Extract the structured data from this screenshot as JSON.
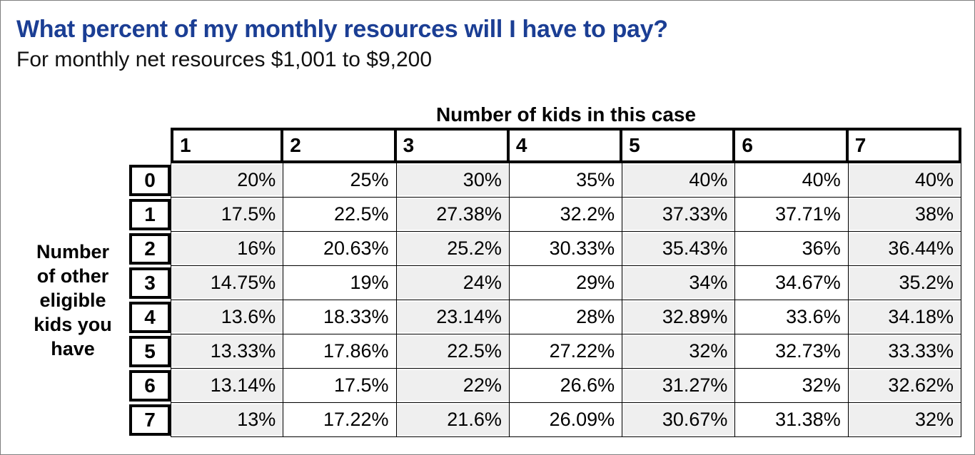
{
  "title": "What percent of my monthly resources will I have to pay?",
  "subtitle": "For monthly net resources $1,001 to $9,200",
  "table": {
    "col_axis_label": "Number of kids in this case",
    "row_axis_label": "Number of other eligible kids you have",
    "col_headers": [
      "1",
      "2",
      "3",
      "4",
      "5",
      "6",
      "7"
    ],
    "row_headers": [
      "0",
      "1",
      "2",
      "3",
      "4",
      "5",
      "6",
      "7"
    ],
    "rows": [
      [
        "20%",
        "25%",
        "30%",
        "35%",
        "40%",
        "40%",
        "40%"
      ],
      [
        "17.5%",
        "22.5%",
        "27.38%",
        "32.2%",
        "37.33%",
        "37.71%",
        "38%"
      ],
      [
        "16%",
        "20.63%",
        "25.2%",
        "30.33%",
        "35.43%",
        "36%",
        "36.44%"
      ],
      [
        "14.75%",
        "19%",
        "24%",
        "29%",
        "34%",
        "34.67%",
        "35.2%"
      ],
      [
        "13.6%",
        "18.33%",
        "23.14%",
        "28%",
        "32.89%",
        "33.6%",
        "34.18%"
      ],
      [
        "13.33%",
        "17.86%",
        "22.5%",
        "27.22%",
        "32%",
        "32.73%",
        "33.33%"
      ],
      [
        "13.14%",
        "17.5%",
        "22%",
        "26.6%",
        "31.27%",
        "32%",
        "32.62%"
      ],
      [
        "13%",
        "17.22%",
        "21.6%",
        "26.09%",
        "30.67%",
        "31.38%",
        "32%"
      ]
    ]
  },
  "colors": {
    "title_blue": "#1b3e94",
    "shaded_column": "#efefef",
    "outer_frame_gray": "#7f7f7f",
    "border_black": "#000000"
  }
}
